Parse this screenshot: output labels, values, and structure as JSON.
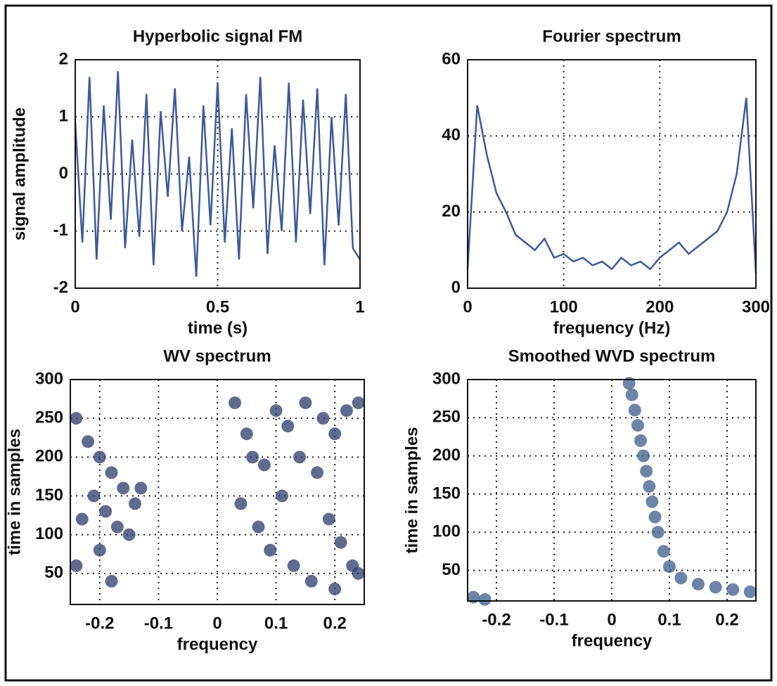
{
  "chart_data": [
    {
      "type": "line",
      "title": "Hyperbolic signal FM",
      "xlabel": "time (s)",
      "ylabel": "signal amplitude",
      "color": "#3d5a99",
      "x": [
        0,
        0.025,
        0.05,
        0.075,
        0.1,
        0.125,
        0.15,
        0.175,
        0.2,
        0.225,
        0.25,
        0.275,
        0.3,
        0.325,
        0.35,
        0.375,
        0.4,
        0.425,
        0.45,
        0.475,
        0.5,
        0.525,
        0.55,
        0.575,
        0.6,
        0.625,
        0.65,
        0.675,
        0.7,
        0.725,
        0.75,
        0.775,
        0.8,
        0.825,
        0.85,
        0.875,
        0.9,
        0.925,
        0.95,
        0.975,
        1
      ],
      "values": [
        0.9,
        -1.2,
        1.7,
        -1.5,
        1.2,
        -0.8,
        1.8,
        -1.3,
        0.6,
        -1.1,
        1.4,
        -1.6,
        1.1,
        -0.4,
        1.5,
        -1.0,
        0.3,
        -1.8,
        1.2,
        -0.9,
        1.6,
        -1.2,
        0.8,
        -1.5,
        1.4,
        -0.6,
        1.7,
        -1.4,
        0.5,
        -1.0,
        1.6,
        -1.2,
        1.3,
        -0.7,
        1.5,
        -1.6,
        1.0,
        -0.9,
        1.4,
        -1.3,
        -1.5
      ],
      "xlim": [
        0,
        1
      ],
      "ylim": [
        -2,
        2
      ],
      "xticks": [
        0,
        0.5,
        1
      ],
      "yticks": [
        -2,
        -1,
        0,
        1,
        2
      ],
      "grid": true
    },
    {
      "type": "line",
      "title": "Fourier spectrum",
      "xlabel": "frequency (Hz)",
      "color": "#3d5a99",
      "x": [
        0,
        10,
        20,
        30,
        40,
        50,
        60,
        70,
        80,
        90,
        100,
        110,
        120,
        130,
        140,
        150,
        160,
        170,
        180,
        190,
        200,
        210,
        220,
        230,
        240,
        250,
        260,
        270,
        280,
        290,
        300
      ],
      "values": [
        5,
        48,
        35,
        25,
        20,
        14,
        12,
        10,
        13,
        8,
        9,
        7,
        8,
        6,
        7,
        5,
        8,
        6,
        7,
        5,
        8,
        10,
        12,
        9,
        11,
        13,
        15,
        20,
        30,
        50,
        4
      ],
      "xlim": [
        0,
        300
      ],
      "ylim": [
        0,
        60
      ],
      "xticks": [
        0,
        100,
        200,
        300
      ],
      "yticks": [
        0,
        20,
        40,
        60
      ],
      "grid": true
    },
    {
      "type": "scatter",
      "title": "WV spectrum",
      "xlabel": "frequency",
      "ylabel": "time in samples",
      "color": "#2b3a6b",
      "x": [
        -0.24,
        -0.22,
        -0.2,
        -0.18,
        -0.16,
        -0.14,
        -0.23,
        -0.21,
        -0.19,
        -0.17,
        -0.15,
        -0.13,
        -0.24,
        -0.2,
        -0.18,
        0.03,
        0.05,
        0.08,
        0.1,
        0.12,
        0.15,
        0.18,
        0.2,
        0.22,
        0.24,
        0.04,
        0.07,
        0.11,
        0.14,
        0.17,
        0.19,
        0.21,
        0.23,
        0.06,
        0.09,
        0.13,
        0.16,
        0.2,
        0.24
      ],
      "values": [
        250,
        220,
        200,
        180,
        160,
        140,
        120,
        150,
        130,
        110,
        100,
        160,
        60,
        80,
        40,
        270,
        230,
        190,
        260,
        240,
        270,
        250,
        230,
        260,
        270,
        140,
        110,
        150,
        200,
        180,
        120,
        90,
        60,
        200,
        80,
        60,
        40,
        30,
        50
      ],
      "xlim": [
        -0.25,
        0.25
      ],
      "ylim": [
        10,
        300
      ],
      "xticks": [
        -0.2,
        -0.1,
        0,
        0.1,
        0.2
      ],
      "yticks": [
        50,
        100,
        150,
        200,
        250,
        300
      ],
      "grid": true
    },
    {
      "type": "scatter",
      "title": "Smoothed WVD spectrum",
      "xlabel": "frequency",
      "ylabel": "time in samples",
      "color": "#3b5b8a",
      "x": [
        0.03,
        0.035,
        0.04,
        0.045,
        0.05,
        0.055,
        0.06,
        0.065,
        0.07,
        0.075,
        0.08,
        0.09,
        0.1,
        0.12,
        0.15,
        0.18,
        0.21,
        0.24,
        -0.24,
        -0.22
      ],
      "values": [
        295,
        280,
        260,
        240,
        220,
        200,
        180,
        160,
        140,
        120,
        100,
        75,
        55,
        40,
        32,
        28,
        25,
        22,
        15,
        12
      ],
      "xlim": [
        -0.25,
        0.25
      ],
      "ylim": [
        10,
        300
      ],
      "xticks": [
        -0.2,
        -0.1,
        0,
        0.1,
        0.2
      ],
      "yticks": [
        50,
        100,
        150,
        200,
        250,
        300
      ],
      "grid": true
    }
  ]
}
